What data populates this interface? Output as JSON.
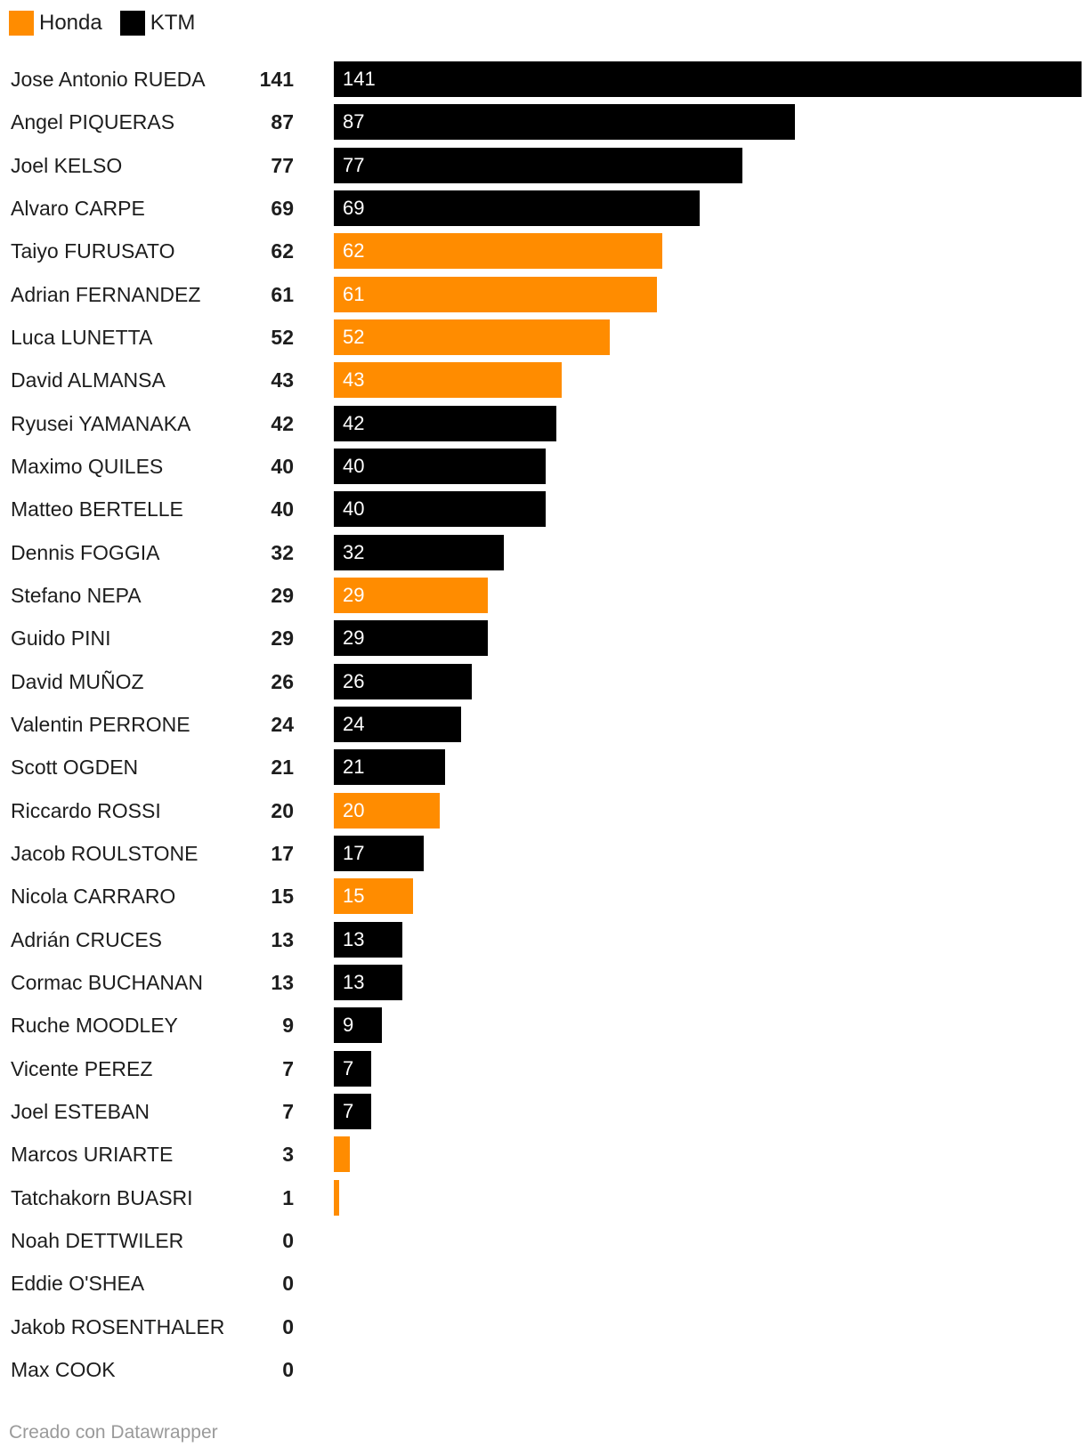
{
  "legend": [
    {
      "label": "Honda",
      "color": "#ff8c00"
    },
    {
      "label": "KTM",
      "color": "#000000"
    }
  ],
  "colors": {
    "Honda": "#ff8c00",
    "KTM": "#000000"
  },
  "footer": "Creado con Datawrapper",
  "chart_data": {
    "type": "bar",
    "orientation": "horizontal",
    "xlim": [
      0,
      141
    ],
    "series": [
      {
        "name": "Honda",
        "color": "#ff8c00"
      },
      {
        "name": "KTM",
        "color": "#000000"
      }
    ],
    "rows": [
      {
        "name": "Jose Antonio RUEDA",
        "value": 141,
        "series": "KTM"
      },
      {
        "name": "Angel PIQUERAS",
        "value": 87,
        "series": "KTM"
      },
      {
        "name": "Joel KELSO",
        "value": 77,
        "series": "KTM"
      },
      {
        "name": "Alvaro CARPE",
        "value": 69,
        "series": "KTM"
      },
      {
        "name": "Taiyo FURUSATO",
        "value": 62,
        "series": "Honda"
      },
      {
        "name": "Adrian FERNANDEZ",
        "value": 61,
        "series": "Honda"
      },
      {
        "name": "Luca LUNETTA",
        "value": 52,
        "series": "Honda"
      },
      {
        "name": "David ALMANSA",
        "value": 43,
        "series": "Honda"
      },
      {
        "name": "Ryusei YAMANAKA",
        "value": 42,
        "series": "KTM"
      },
      {
        "name": "Maximo QUILES",
        "value": 40,
        "series": "KTM"
      },
      {
        "name": "Matteo BERTELLE",
        "value": 40,
        "series": "KTM"
      },
      {
        "name": "Dennis FOGGIA",
        "value": 32,
        "series": "KTM"
      },
      {
        "name": "Stefano NEPA",
        "value": 29,
        "series": "Honda"
      },
      {
        "name": "Guido PINI",
        "value": 29,
        "series": "KTM"
      },
      {
        "name": "David MUÑOZ",
        "value": 26,
        "series": "KTM"
      },
      {
        "name": "Valentin PERRONE",
        "value": 24,
        "series": "KTM"
      },
      {
        "name": "Scott OGDEN",
        "value": 21,
        "series": "KTM"
      },
      {
        "name": "Riccardo ROSSI",
        "value": 20,
        "series": "Honda"
      },
      {
        "name": "Jacob ROULSTONE",
        "value": 17,
        "series": "KTM"
      },
      {
        "name": "Nicola CARRARO",
        "value": 15,
        "series": "Honda"
      },
      {
        "name": "Adrián CRUCES",
        "value": 13,
        "series": "KTM"
      },
      {
        "name": "Cormac BUCHANAN",
        "value": 13,
        "series": "KTM"
      },
      {
        "name": "Ruche MOODLEY",
        "value": 9,
        "series": "KTM"
      },
      {
        "name": "Vicente PEREZ",
        "value": 7,
        "series": "KTM"
      },
      {
        "name": "Joel ESTEBAN",
        "value": 7,
        "series": "KTM"
      },
      {
        "name": "Marcos URIARTE",
        "value": 3,
        "series": "Honda"
      },
      {
        "name": "Tatchakorn BUASRI",
        "value": 1,
        "series": "Honda"
      },
      {
        "name": "Noah DETTWILER",
        "value": 0,
        "series": "none"
      },
      {
        "name": "Eddie O'SHEA",
        "value": 0,
        "series": "none"
      },
      {
        "name": "Jakob ROSENTHALER",
        "value": 0,
        "series": "none"
      },
      {
        "name": "Max COOK",
        "value": 0,
        "series": "none"
      }
    ]
  }
}
